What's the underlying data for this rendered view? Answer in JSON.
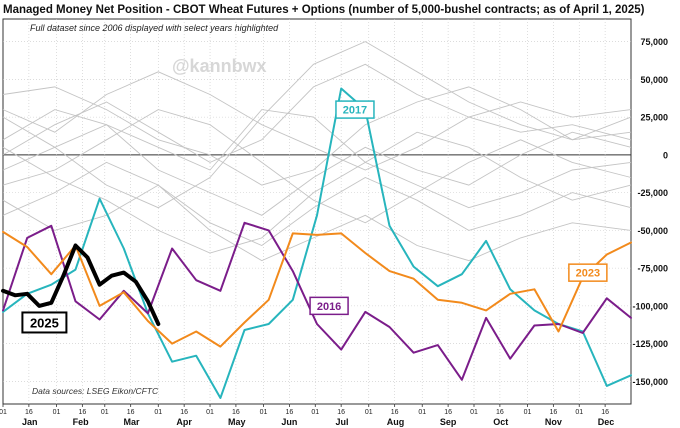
{
  "chart_data": {
    "type": "line",
    "title": "Managed Money Net Position - CBOT Wheat Futures + Options (number of 5,000-bushel contracts; as of April 1, 2025)",
    "subtitle": "Full dataset since 2006 displayed with select years highlighted",
    "watermark": "@kannbwx",
    "source": "Data sources: LSEG Eikon/CFTC",
    "ylim": [
      -165000,
      90000
    ],
    "y_ticks": [
      75000,
      50000,
      25000,
      0,
      -25000,
      -50000,
      -75000,
      -100000,
      -125000,
      -150000
    ],
    "y_tick_labels": [
      "75,000",
      "50,000",
      "25,000",
      "0",
      "-25,000",
      "-50,000",
      "-75,000",
      "-100,000",
      "-125,000",
      "-150,000"
    ],
    "x_months": [
      "Jan",
      "Feb",
      "Mar",
      "Apr",
      "May",
      "Jun",
      "Jul",
      "Aug",
      "Sep",
      "Oct",
      "Nov",
      "Dec"
    ],
    "x_day_labels": [
      "01",
      "16"
    ],
    "series": [
      {
        "name": "2017",
        "color": "#27b5bd",
        "x": [
          1,
          15,
          29,
          43,
          57,
          71,
          85,
          99,
          113,
          127,
          141,
          155,
          169,
          183,
          197,
          211,
          225,
          239,
          253,
          267,
          281,
          295,
          309,
          323,
          337,
          351,
          365
        ],
        "y": [
          -104000,
          -92000,
          -86000,
          -76000,
          -29000,
          -62000,
          -105000,
          -137000,
          -133000,
          -161000,
          -116000,
          -112000,
          -96000,
          -40000,
          44000,
          30000,
          -47000,
          -74000,
          -87000,
          -79000,
          -57000,
          -89000,
          -103000,
          -112000,
          -117000,
          -153000,
          -146000
        ]
      },
      {
        "name": "2016",
        "color": "#7b1d8a",
        "x": [
          1,
          15,
          29,
          43,
          57,
          71,
          85,
          99,
          113,
          127,
          141,
          155,
          169,
          183,
          197,
          211,
          225,
          239,
          253,
          267,
          281,
          295,
          309,
          323,
          337,
          351,
          365
        ],
        "y": [
          -103000,
          -55000,
          -47000,
          -97000,
          -109000,
          -90000,
          -105000,
          -62000,
          -83000,
          -90000,
          -45000,
          -50000,
          -77000,
          -112000,
          -129000,
          -104000,
          -114000,
          -131000,
          -126000,
          -149000,
          -108000,
          -135000,
          -113000,
          -112000,
          -118000,
          -95000,
          -108000
        ]
      },
      {
        "name": "2023",
        "color": "#f28a1c",
        "x": [
          1,
          15,
          29,
          43,
          57,
          71,
          85,
          99,
          113,
          127,
          141,
          155,
          169,
          183,
          197,
          211,
          225,
          239,
          253,
          267,
          281,
          295,
          309,
          323,
          337,
          351,
          365
        ],
        "y": [
          -51000,
          -61000,
          -79000,
          -60000,
          -100000,
          -91000,
          -110000,
          -125000,
          -117000,
          -127000,
          -111000,
          -96000,
          -52000,
          -53000,
          -52000,
          -65000,
          -77000,
          -82000,
          -96000,
          -98000,
          -103000,
          -92000,
          -89000,
          -117000,
          -81000,
          -66000,
          -58000
        ]
      },
      {
        "name": "2025",
        "color": "#000000",
        "x": [
          1,
          8,
          15,
          22,
          29,
          36,
          43,
          50,
          57,
          64,
          71,
          78,
          85,
          91
        ],
        "y": [
          -90000,
          -93000,
          -92000,
          -100000,
          -98000,
          -80000,
          -60000,
          -68000,
          -86000,
          -80000,
          -78000,
          -84000,
          -97000,
          -112000
        ]
      }
    ],
    "background_series": [
      {
        "x": [
          1,
          31,
          61,
          91,
          121,
          151,
          181,
          211,
          241,
          271,
          301,
          331,
          365
        ],
        "y": [
          0,
          20000,
          35000,
          15000,
          -5000,
          10000,
          45000,
          60000,
          40000,
          25000,
          15000,
          20000,
          10000
        ]
      },
      {
        "x": [
          1,
          31,
          61,
          91,
          121,
          151,
          181,
          211,
          241,
          271,
          301,
          331,
          365
        ],
        "y": [
          25000,
          5000,
          -20000,
          -35000,
          -15000,
          25000,
          60000,
          75000,
          55000,
          35000,
          20000,
          10000,
          25000
        ]
      },
      {
        "x": [
          1,
          31,
          61,
          91,
          121,
          151,
          181,
          211,
          241,
          271,
          301,
          331,
          365
        ],
        "y": [
          10000,
          30000,
          20000,
          -10000,
          -25000,
          -40000,
          -15000,
          5000,
          -10000,
          -20000,
          0,
          15000,
          5000
        ]
      },
      {
        "x": [
          1,
          31,
          61,
          91,
          121,
          151,
          181,
          211,
          241,
          271,
          301,
          331,
          365
        ],
        "y": [
          -20000,
          -10000,
          10000,
          30000,
          20000,
          -5000,
          -30000,
          -45000,
          -25000,
          -5000,
          10000,
          -5000,
          -15000
        ]
      },
      {
        "x": [
          1,
          31,
          61,
          91,
          121,
          151,
          181,
          211,
          241,
          271,
          301,
          331,
          365
        ],
        "y": [
          -30000,
          -50000,
          -40000,
          -20000,
          -45000,
          -60000,
          -35000,
          -15000,
          -30000,
          -50000,
          -40000,
          -25000,
          -35000
        ]
      },
      {
        "x": [
          1,
          31,
          61,
          91,
          121,
          151,
          181,
          211,
          241,
          271,
          301,
          331,
          365
        ],
        "y": [
          40000,
          45000,
          30000,
          10000,
          0,
          -20000,
          -10000,
          20000,
          35000,
          45000,
          30000,
          10000,
          15000
        ]
      },
      {
        "x": [
          1,
          31,
          61,
          91,
          121,
          151,
          181,
          211,
          241,
          271,
          301,
          331,
          365
        ],
        "y": [
          -40000,
          -25000,
          -5000,
          -20000,
          -50000,
          -70000,
          -55000,
          -40000,
          -60000,
          -70000,
          -55000,
          -45000,
          -50000
        ]
      },
      {
        "x": [
          1,
          31,
          61,
          91,
          121,
          151,
          181,
          211,
          241,
          271,
          301,
          331,
          365
        ],
        "y": [
          5000,
          -15000,
          -30000,
          -50000,
          -65000,
          -55000,
          -25000,
          -5000,
          15000,
          5000,
          -15000,
          -30000,
          -20000
        ]
      },
      {
        "x": [
          1,
          31,
          61,
          91,
          121,
          151,
          181,
          211,
          241,
          271,
          301,
          331,
          365
        ],
        "y": [
          30000,
          15000,
          40000,
          55000,
          40000,
          20000,
          5000,
          -10000,
          5000,
          25000,
          35000,
          25000,
          30000
        ]
      },
      {
        "x": [
          1,
          31,
          61,
          91,
          121,
          151,
          181,
          211,
          241,
          271,
          301,
          331,
          365
        ],
        "y": [
          -10000,
          5000,
          20000,
          5000,
          -10000,
          30000,
          25000,
          -5000,
          -20000,
          -35000,
          -25000,
          -10000,
          -5000
        ]
      }
    ],
    "series_label_placement": {
      "2017": "top",
      "2016": "middle",
      "2023": "right",
      "2025": "left"
    },
    "grid": true
  }
}
